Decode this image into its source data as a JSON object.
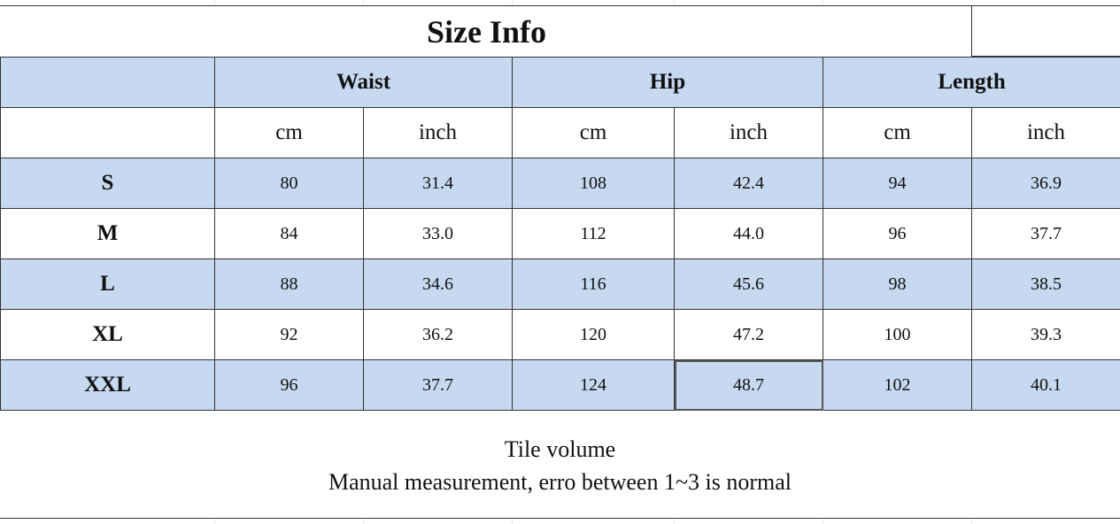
{
  "title": "Size Info",
  "groups": [
    "Waist",
    "Hip",
    "Length"
  ],
  "units": [
    "cm",
    "inch",
    "cm",
    "inch",
    "cm",
    "inch"
  ],
  "rows": [
    {
      "size": "S",
      "values": [
        "80",
        "31.4",
        "108",
        "42.4",
        "94",
        "36.9"
      ]
    },
    {
      "size": "M",
      "values": [
        "84",
        "33.0",
        "112",
        "44.0",
        "96",
        "37.7"
      ]
    },
    {
      "size": "L",
      "values": [
        "88",
        "34.6",
        "116",
        "45.6",
        "98",
        "38.5"
      ]
    },
    {
      "size": "XL",
      "values": [
        "92",
        "36.2",
        "120",
        "47.2",
        "100",
        "39.3"
      ]
    },
    {
      "size": "XXL",
      "values": [
        "96",
        "37.7",
        "124",
        "48.7",
        "102",
        "40.1"
      ]
    }
  ],
  "notes": {
    "line1": "Tile volume",
    "line2": "Manual measurement, erro between 1~3 is normal"
  },
  "colors": {
    "shade": "#c6d9f1"
  }
}
